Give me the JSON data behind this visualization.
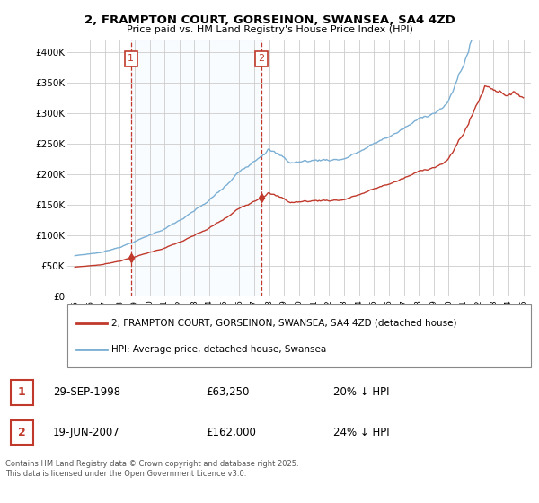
{
  "title": "2, FRAMPTON COURT, GORSEINON, SWANSEA, SA4 4ZD",
  "subtitle": "Price paid vs. HM Land Registry's House Price Index (HPI)",
  "legend_label_red": "2, FRAMPTON COURT, GORSEINON, SWANSEA, SA4 4ZD (detached house)",
  "legend_label_blue": "HPI: Average price, detached house, Swansea",
  "transaction1_date": "29-SEP-1998",
  "transaction1_price": "£63,250",
  "transaction1_hpi": "20% ↓ HPI",
  "transaction2_date": "19-JUN-2007",
  "transaction2_price": "£162,000",
  "transaction2_hpi": "24% ↓ HPI",
  "footer": "Contains HM Land Registry data © Crown copyright and database right 2025.\nThis data is licensed under the Open Government Licence v3.0.",
  "ylim": [
    0,
    420000
  ],
  "yticks": [
    0,
    50000,
    100000,
    150000,
    200000,
    250000,
    300000,
    350000,
    400000
  ],
  "ytick_labels": [
    "£0",
    "£50K",
    "£100K",
    "£150K",
    "£200K",
    "£250K",
    "£300K",
    "£350K",
    "£400K"
  ],
  "color_red": "#c0392b",
  "color_blue": "#7bafd4",
  "color_vline": "#c0392b",
  "color_shade": "#ddeeff",
  "background_color": "#ffffff",
  "grid_color": "#cccccc",
  "transaction1_x": 1998.75,
  "transaction2_x": 2007.47,
  "xmin": 1995,
  "xmax": 2025
}
